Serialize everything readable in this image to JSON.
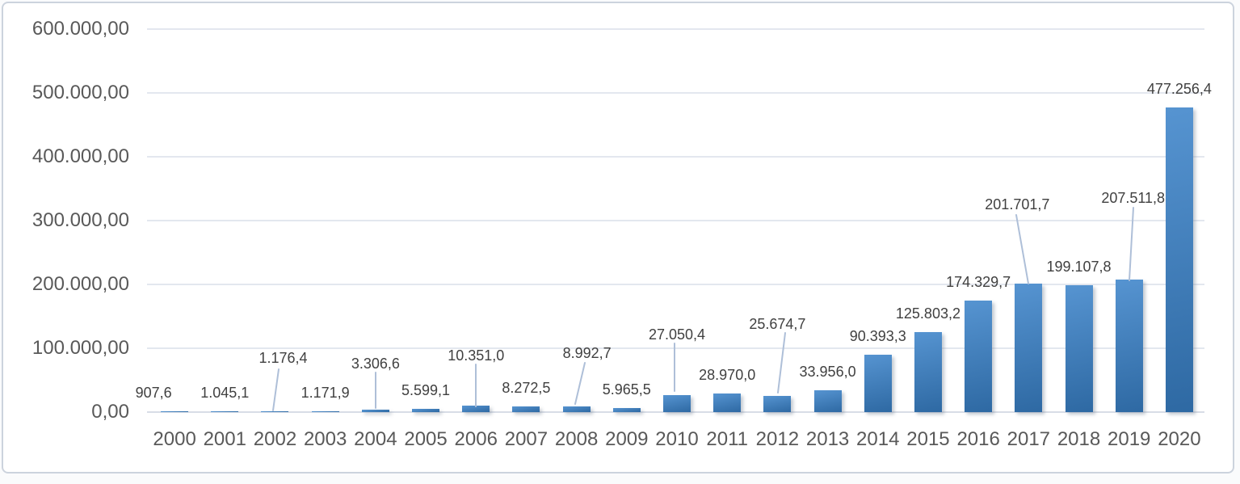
{
  "chart_data": {
    "type": "bar",
    "title": "",
    "xlabel": "",
    "ylabel": "",
    "legend": "none",
    "grid": true,
    "ylim": [
      0,
      600000
    ],
    "categories": [
      "2000",
      "2001",
      "2002",
      "2003",
      "2004",
      "2005",
      "2006",
      "2007",
      "2008",
      "2009",
      "2010",
      "2011",
      "2012",
      "2013",
      "2014",
      "2015",
      "2016",
      "2017",
      "2018",
      "2019",
      "2020"
    ],
    "values": [
      907.6,
      1045.1,
      1176.4,
      1171.9,
      3306.6,
      5599.1,
      10351.0,
      8272.5,
      8992.7,
      5965.5,
      27050.4,
      28970.0,
      25674.7,
      33956.0,
      90393.3,
      125803.2,
      174329.7,
      201701.7,
      199107.8,
      207511.8,
      477256.4
    ],
    "data_labels": [
      "907,6",
      "1.045,1",
      "1.176,4",
      "1.171,9",
      "3.306,6",
      "5.599,1",
      "10.351,0",
      "8.272,5",
      "8.992,7",
      "5.965,5",
      "27.050,4",
      "28.970,0",
      "25.674,7",
      "33.956,0",
      "90.393,3",
      "125.803,2",
      "174.329,7",
      "201.701,7",
      "199.107,8",
      "207.511,8",
      "477.256,4"
    ],
    "y_tick_labels": [
      "600.000,00",
      "500.000,00",
      "400.000,00",
      "300.000,00",
      "200.000,00",
      "100.000,00",
      "0,00"
    ],
    "colors": {
      "bar_gradient_top": "#5694d1",
      "bar_gradient_bottom": "#2e69a3",
      "gridline": "#e3e7ef",
      "axis_line": "#d8dde6",
      "axis_text": "#595959",
      "data_label_text": "#404040",
      "leader_line": "#aebfd8",
      "frame_border": "#ccd3dd",
      "background": "#ffffff"
    },
    "label_layout": [
      {
        "dx": -26
      },
      {},
      {
        "dx": 10,
        "cy": 443,
        "leader": [
          345,
          457,
          338,
          508
        ]
      },
      {},
      {
        "cy": 450,
        "leader": [
          465,
          461,
          465,
          505
        ]
      },
      {},
      {
        "cy": 440,
        "leader": [
          589,
          451,
          589,
          503
        ]
      },
      {},
      {
        "dx": 13,
        "cy": 437,
        "leader": [
          724,
          449,
          712,
          500
        ]
      },
      {},
      {
        "cy": 414,
        "leader": [
          835,
          425,
          835,
          484
        ]
      },
      {},
      {
        "cy": 401,
        "leader": [
          972,
          412,
          963,
          486
        ]
      },
      {},
      {},
      {},
      {},
      {
        "dx": -14,
        "cy": 253,
        "leader": [
          1258,
          266,
          1273,
          351
        ]
      },
      {},
      {
        "dx": 5,
        "cy": 245,
        "leader": [
          1403,
          257,
          1398,
          347
        ]
      },
      {}
    ]
  }
}
